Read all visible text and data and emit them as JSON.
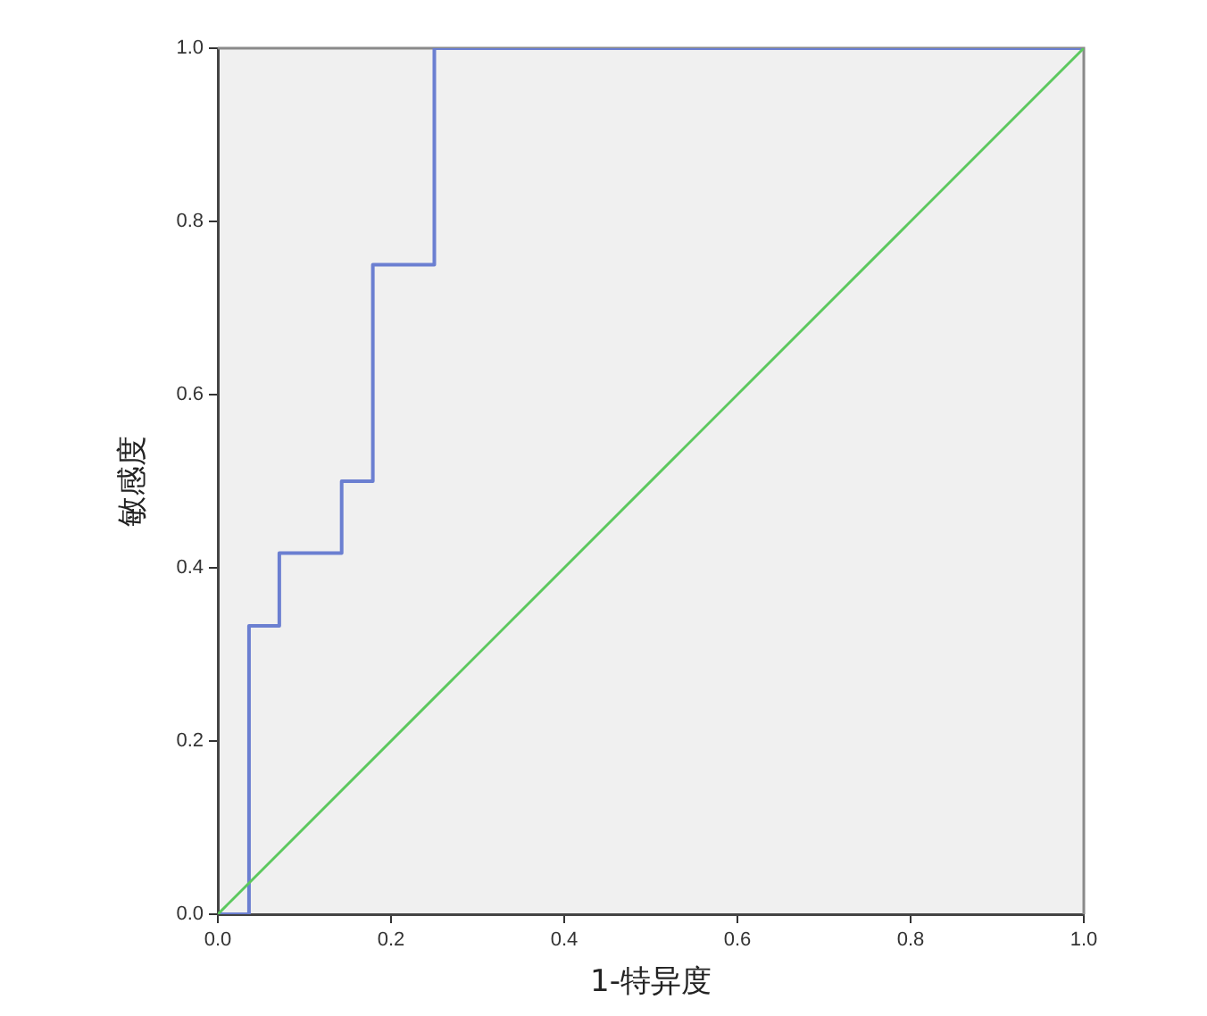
{
  "chart_data": {
    "type": "step",
    "xlabel": "1-特异度",
    "ylabel": "敏感度",
    "xlim": [
      0,
      1
    ],
    "ylim": [
      0,
      1
    ],
    "xticks": [
      {
        "value": 0,
        "label": "0.0"
      },
      0.2,
      0.4,
      0.6,
      0.8,
      {
        "value": 1,
        "label": "1.0"
      }
    ],
    "yticks": [
      {
        "value": 0,
        "label": "0.0"
      },
      0.2,
      0.4,
      0.6,
      0.8,
      {
        "value": 1,
        "label": "1.0"
      }
    ],
    "grid": false,
    "legend": false,
    "marker": "none",
    "series": [
      {
        "type": "step",
        "color": "#6b7fd1",
        "x": [
          0,
          0.036,
          0.071,
          0.143,
          0.179,
          0.25,
          1
        ],
        "values": [
          0,
          0.333,
          0.417,
          0.5,
          0.75,
          1,
          1
        ]
      },
      {
        "type": "line",
        "color": "#5cc85e",
        "x": [
          0,
          1
        ],
        "values": [
          0,
          1
        ]
      }
    ]
  }
}
